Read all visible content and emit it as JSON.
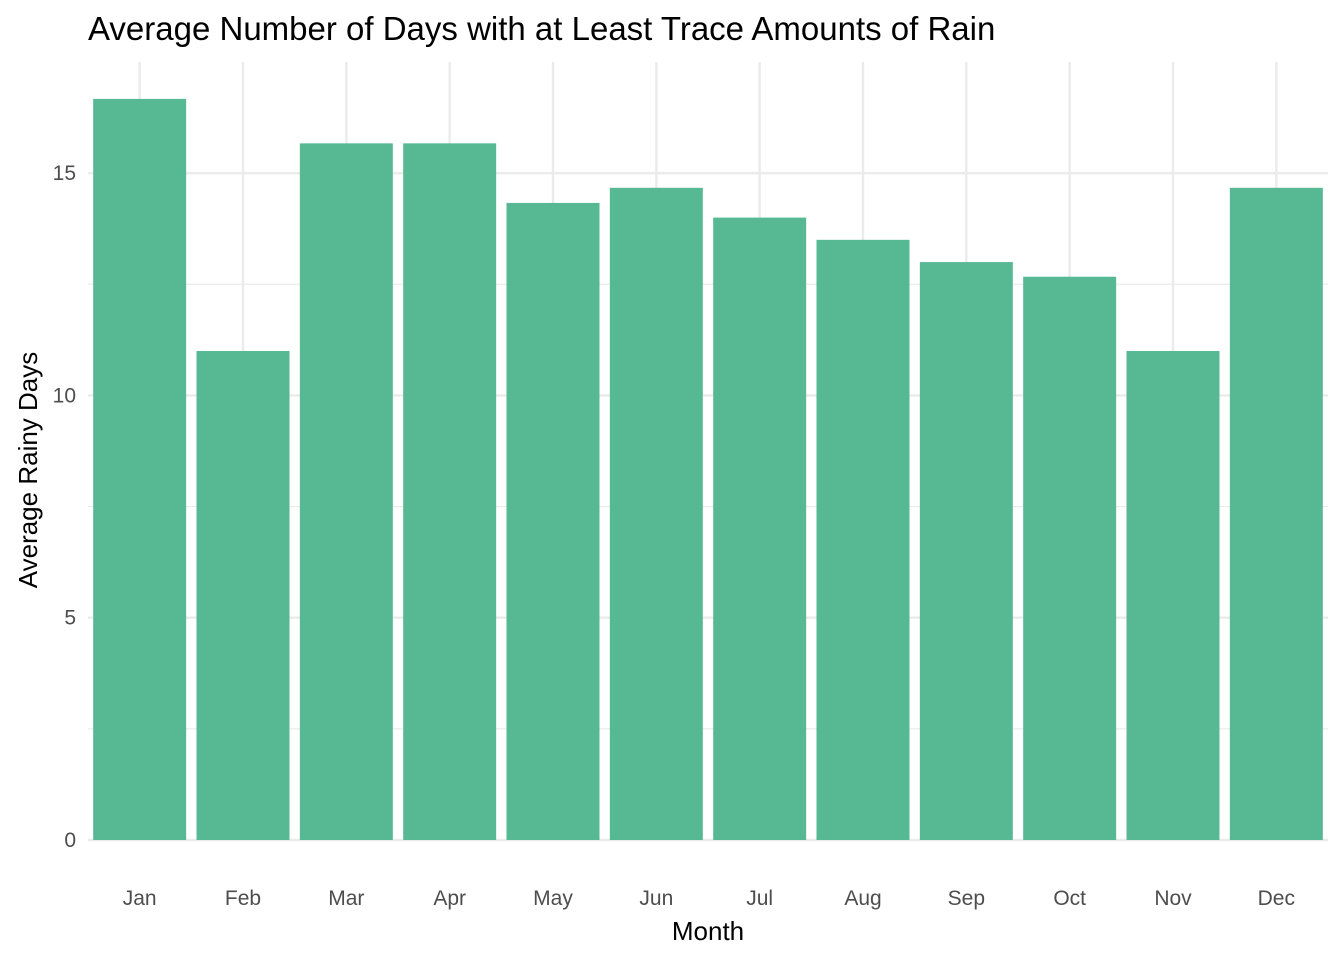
{
  "chart_data": {
    "type": "bar",
    "title": "Average Number of Days with at Least Trace Amounts of Rain",
    "xlabel": "Month",
    "ylabel": "Average Rainy Days",
    "categories": [
      "Jan",
      "Feb",
      "Mar",
      "Apr",
      "May",
      "Jun",
      "Jul",
      "Aug",
      "Sep",
      "Oct",
      "Nov",
      "Dec"
    ],
    "values": [
      16.67,
      11.0,
      15.67,
      15.67,
      14.33,
      14.67,
      14.0,
      13.5,
      13.0,
      12.67,
      11.0,
      14.67
    ],
    "ylim": [
      0,
      17.5
    ],
    "yticks": [
      0,
      5,
      10,
      15
    ],
    "ytick_labels": [
      "0",
      "5",
      "10",
      "15"
    ],
    "grid": true,
    "legend": "none",
    "bar_color": "#57b994"
  }
}
